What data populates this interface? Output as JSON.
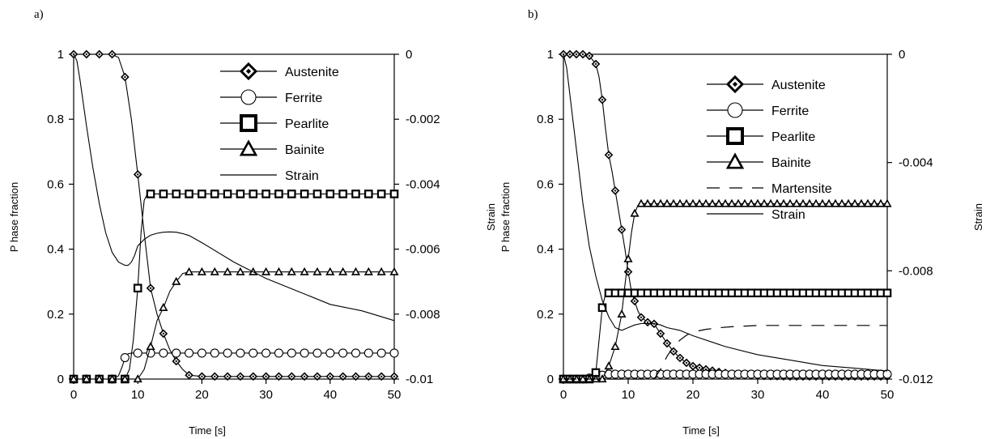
{
  "chart_data": [
    {
      "panel_label": "a)",
      "type": "line",
      "xlabel": "Time [s]",
      "ylabel": "P hase fraction",
      "y2label": "Strain",
      "xlim": [
        0,
        50
      ],
      "ylim": [
        0,
        1
      ],
      "y2lim": [
        -0.01,
        0
      ],
      "xticks": [
        "0",
        "10",
        "20",
        "30",
        "40",
        "50"
      ],
      "yticks": [
        "0",
        "0.2",
        "0.4",
        "0.6",
        "0.8",
        "1"
      ],
      "y2ticks": [
        "-0.01",
        "-0.008",
        "-0.006",
        "-0.004",
        "-0.002",
        "0"
      ],
      "legend_position": "top-right",
      "series": [
        {
          "name": "Austenite",
          "marker": "diamond",
          "axis": "left",
          "x": [
            0,
            2,
            4,
            6,
            7,
            8,
            9,
            10,
            11,
            12,
            13,
            14,
            15,
            16,
            17,
            18,
            20,
            25,
            30,
            35,
            40,
            45,
            50
          ],
          "y": [
            1,
            1,
            1,
            1,
            0.99,
            0.93,
            0.8,
            0.63,
            0.45,
            0.28,
            0.2,
            0.14,
            0.09,
            0.055,
            0.03,
            0.012,
            0.008,
            0.008,
            0.008,
            0.008,
            0.008,
            0.008,
            0.008
          ]
        },
        {
          "name": "Ferrite",
          "marker": "circle",
          "axis": "left",
          "x": [
            0,
            2,
            4,
            6,
            7,
            7.6,
            8,
            8.5,
            9,
            10,
            12,
            15,
            20,
            25,
            30,
            35,
            40,
            45,
            50
          ],
          "y": [
            0,
            0,
            0,
            0,
            0.01,
            0.04,
            0.066,
            0.078,
            0.08,
            0.08,
            0.08,
            0.08,
            0.08,
            0.08,
            0.08,
            0.08,
            0.08,
            0.08,
            0.08
          ]
        },
        {
          "name": "Pearlite",
          "marker": "square",
          "axis": "left",
          "x": [
            0,
            2,
            4,
            6,
            8,
            8.7,
            9.3,
            10,
            10.5,
            11,
            11.5,
            12,
            15,
            20,
            25,
            30,
            35,
            40,
            45,
            50
          ],
          "y": [
            0,
            0,
            0,
            0,
            0,
            0.03,
            0.12,
            0.28,
            0.45,
            0.55,
            0.57,
            0.57,
            0.57,
            0.57,
            0.57,
            0.57,
            0.57,
            0.57,
            0.57,
            0.57
          ]
        },
        {
          "name": "Bainite",
          "marker": "triangle",
          "axis": "left",
          "x": [
            0,
            8,
            10,
            11,
            12,
            13,
            14,
            15,
            16,
            17,
            18,
            20,
            25,
            30,
            35,
            40,
            45,
            50
          ],
          "y": [
            0,
            0,
            0,
            0.03,
            0.1,
            0.18,
            0.22,
            0.27,
            0.3,
            0.325,
            0.33,
            0.33,
            0.33,
            0.33,
            0.33,
            0.33,
            0.33,
            0.33
          ]
        },
        {
          "name": "Strain",
          "marker": "none",
          "axis": "right",
          "x": [
            0,
            0.5,
            1,
            2,
            3,
            4,
            5,
            6,
            7,
            8,
            8.5,
            9,
            9.5,
            10,
            11,
            12,
            13,
            14,
            15,
            16,
            17,
            18,
            20,
            25,
            30,
            35,
            40,
            45,
            50
          ],
          "y": [
            0,
            -0.0002,
            -0.0008,
            -0.0022,
            -0.0035,
            -0.0046,
            -0.0055,
            -0.0061,
            -0.0064,
            -0.0065,
            -0.0065,
            -0.0064,
            -0.0062,
            -0.0059,
            -0.0057,
            -0.00557,
            -0.00551,
            -0.00548,
            -0.00547,
            -0.00548,
            -0.00552,
            -0.00558,
            -0.0058,
            -0.0064,
            -0.0069,
            -0.0073,
            -0.0077,
            -0.0079,
            -0.0082
          ]
        }
      ]
    },
    {
      "panel_label": "b)",
      "type": "line",
      "xlabel": "Time [s]",
      "ylabel": "P hase fraction",
      "ylabel_extra": "Strain",
      "y2label": "Strain",
      "xlim": [
        0,
        50
      ],
      "ylim": [
        0,
        1
      ],
      "y2lim": [
        -0.012,
        0
      ],
      "xticks": [
        "0",
        "10",
        "20",
        "30",
        "40",
        "50"
      ],
      "yticks": [
        "0",
        "0.2",
        "0.4",
        "0.6",
        "0.8",
        "1"
      ],
      "y2ticks": [
        "-0.012",
        "-0.008",
        "-0.004",
        "0"
      ],
      "legend_position": "top-right",
      "series": [
        {
          "name": "Austenite",
          "marker": "diamond",
          "axis": "left",
          "x": [
            0,
            1,
            2,
            3,
            4,
            5,
            5.5,
            6,
            6.5,
            7,
            7.5,
            8,
            8.5,
            9,
            9.5,
            10,
            10.5,
            11,
            11.5,
            12,
            13,
            14,
            15,
            16,
            17,
            18,
            19,
            20,
            22,
            24,
            26,
            28,
            30,
            35,
            40,
            45,
            50
          ],
          "y": [
            1,
            1,
            1,
            1,
            0.995,
            0.97,
            0.93,
            0.86,
            0.77,
            0.69,
            0.64,
            0.58,
            0.52,
            0.46,
            0.4,
            0.33,
            0.27,
            0.24,
            0.21,
            0.19,
            0.175,
            0.17,
            0.14,
            0.11,
            0.085,
            0.065,
            0.05,
            0.04,
            0.03,
            0.022,
            0.016,
            0.013,
            0.01,
            0.008,
            0.008,
            0.008,
            0.008
          ]
        },
        {
          "name": "Ferrite",
          "marker": "circle",
          "axis": "left",
          "x": [
            0,
            3,
            4,
            5,
            6,
            7,
            10,
            20,
            30,
            40,
            50
          ],
          "y": [
            0,
            0,
            0.003,
            0.008,
            0.012,
            0.015,
            0.015,
            0.015,
            0.015,
            0.015,
            0.015
          ]
        },
        {
          "name": "Pearlite",
          "marker": "square",
          "axis": "left",
          "x": [
            0,
            4,
            5,
            5.5,
            6,
            6.5,
            7,
            8,
            10,
            20,
            30,
            40,
            50
          ],
          "y": [
            0,
            0,
            0.02,
            0.12,
            0.22,
            0.262,
            0.265,
            0.265,
            0.265,
            0.265,
            0.265,
            0.265,
            0.265
          ]
        },
        {
          "name": "Bainite",
          "marker": "triangle",
          "axis": "left",
          "x": [
            0,
            6,
            7,
            8,
            9,
            9.5,
            10,
            10.5,
            11,
            11.5,
            12,
            15,
            20,
            30,
            40,
            50
          ],
          "y": [
            0,
            0,
            0.04,
            0.1,
            0.2,
            0.29,
            0.37,
            0.45,
            0.51,
            0.535,
            0.54,
            0.54,
            0.54,
            0.54,
            0.54,
            0.54
          ]
        },
        {
          "name": "Martensite",
          "marker": "none",
          "dash": true,
          "axis": "left",
          "x": [
            0,
            14,
            15,
            16,
            17,
            18,
            19,
            20,
            22,
            24,
            26,
            28,
            30,
            40,
            50
          ],
          "y": [
            0,
            0,
            0.03,
            0.07,
            0.1,
            0.12,
            0.135,
            0.145,
            0.153,
            0.158,
            0.161,
            0.163,
            0.165,
            0.165,
            0.165
          ]
        },
        {
          "name": "Strain",
          "marker": "none",
          "axis": "right",
          "x": [
            0,
            0.5,
            1,
            2,
            3,
            4,
            5,
            6,
            7,
            8,
            9,
            10,
            11,
            12,
            13,
            14,
            15,
            16,
            18,
            20,
            25,
            30,
            35,
            40,
            45,
            50
          ],
          "y": [
            0,
            -0.0005,
            -0.0015,
            -0.0035,
            -0.0055,
            -0.0071,
            -0.0082,
            -0.0091,
            -0.0097,
            -0.0101,
            -0.0102,
            -0.0101,
            -0.01,
            -0.00995,
            -0.00995,
            -0.00995,
            -0.01,
            -0.0101,
            -0.0102,
            -0.0104,
            -0.0108,
            -0.0111,
            -0.0113,
            -0.0115,
            -0.0116,
            -0.0117
          ]
        }
      ]
    }
  ]
}
